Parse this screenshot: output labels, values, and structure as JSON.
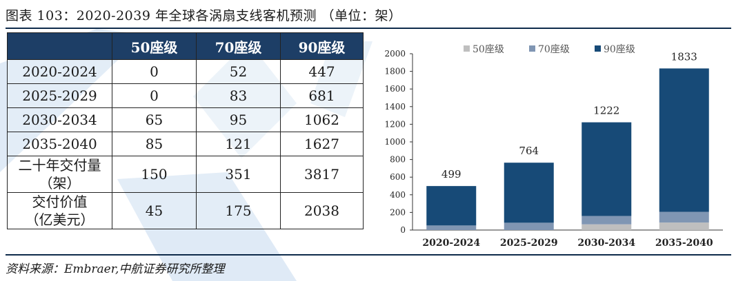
{
  "title": "图表 103：2020-2039 年全球各涡扇支线客机预测 （单位：架）",
  "source": "资料来源：Embraer,中航证券研究所整理",
  "colors": {
    "header_bg": "#1d3e66",
    "s50": "#bfbfbf",
    "s70": "#8096b3",
    "s90": "#174a77",
    "rule": "#0d2a4a"
  },
  "table": {
    "corner": "",
    "headers": [
      "50座级",
      "70座级",
      "90座级"
    ],
    "rows": [
      {
        "label": "2020-2024",
        "c1": "0",
        "c2": "52",
        "c3": "447"
      },
      {
        "label": "2025-2029",
        "c1": "0",
        "c2": "83",
        "c3": "681"
      },
      {
        "label": "2030-2034",
        "c1": "65",
        "c2": "95",
        "c3": "1062"
      },
      {
        "label": "2035-2040",
        "c1": "85",
        "c2": "121",
        "c3": "1627"
      },
      {
        "label": "二十年交付量",
        "label2": "（架）",
        "c1": "150",
        "c2": "351",
        "c3": "3817"
      },
      {
        "label": "交付价值",
        "label2": "（亿美元）",
        "c1": "45",
        "c2": "175",
        "c3": "2038"
      }
    ]
  },
  "chart_data": {
    "type": "bar",
    "stacked": true,
    "categories": [
      "2020-2024",
      "2025-2029",
      "2030-2034",
      "2035-2040"
    ],
    "series": [
      {
        "name": "50座级",
        "values": [
          0,
          0,
          65,
          85
        ]
      },
      {
        "name": "70座级",
        "values": [
          52,
          83,
          95,
          121
        ]
      },
      {
        "name": "90座级",
        "values": [
          447,
          681,
          1062,
          1627
        ]
      }
    ],
    "totals": [
      499,
      764,
      1222,
      1833
    ],
    "ylim": [
      0,
      2000
    ],
    "yticks": [
      0,
      200,
      400,
      600,
      800,
      1000,
      1200,
      1400,
      1600,
      1800,
      2000
    ],
    "legend": "top",
    "grid": false
  }
}
